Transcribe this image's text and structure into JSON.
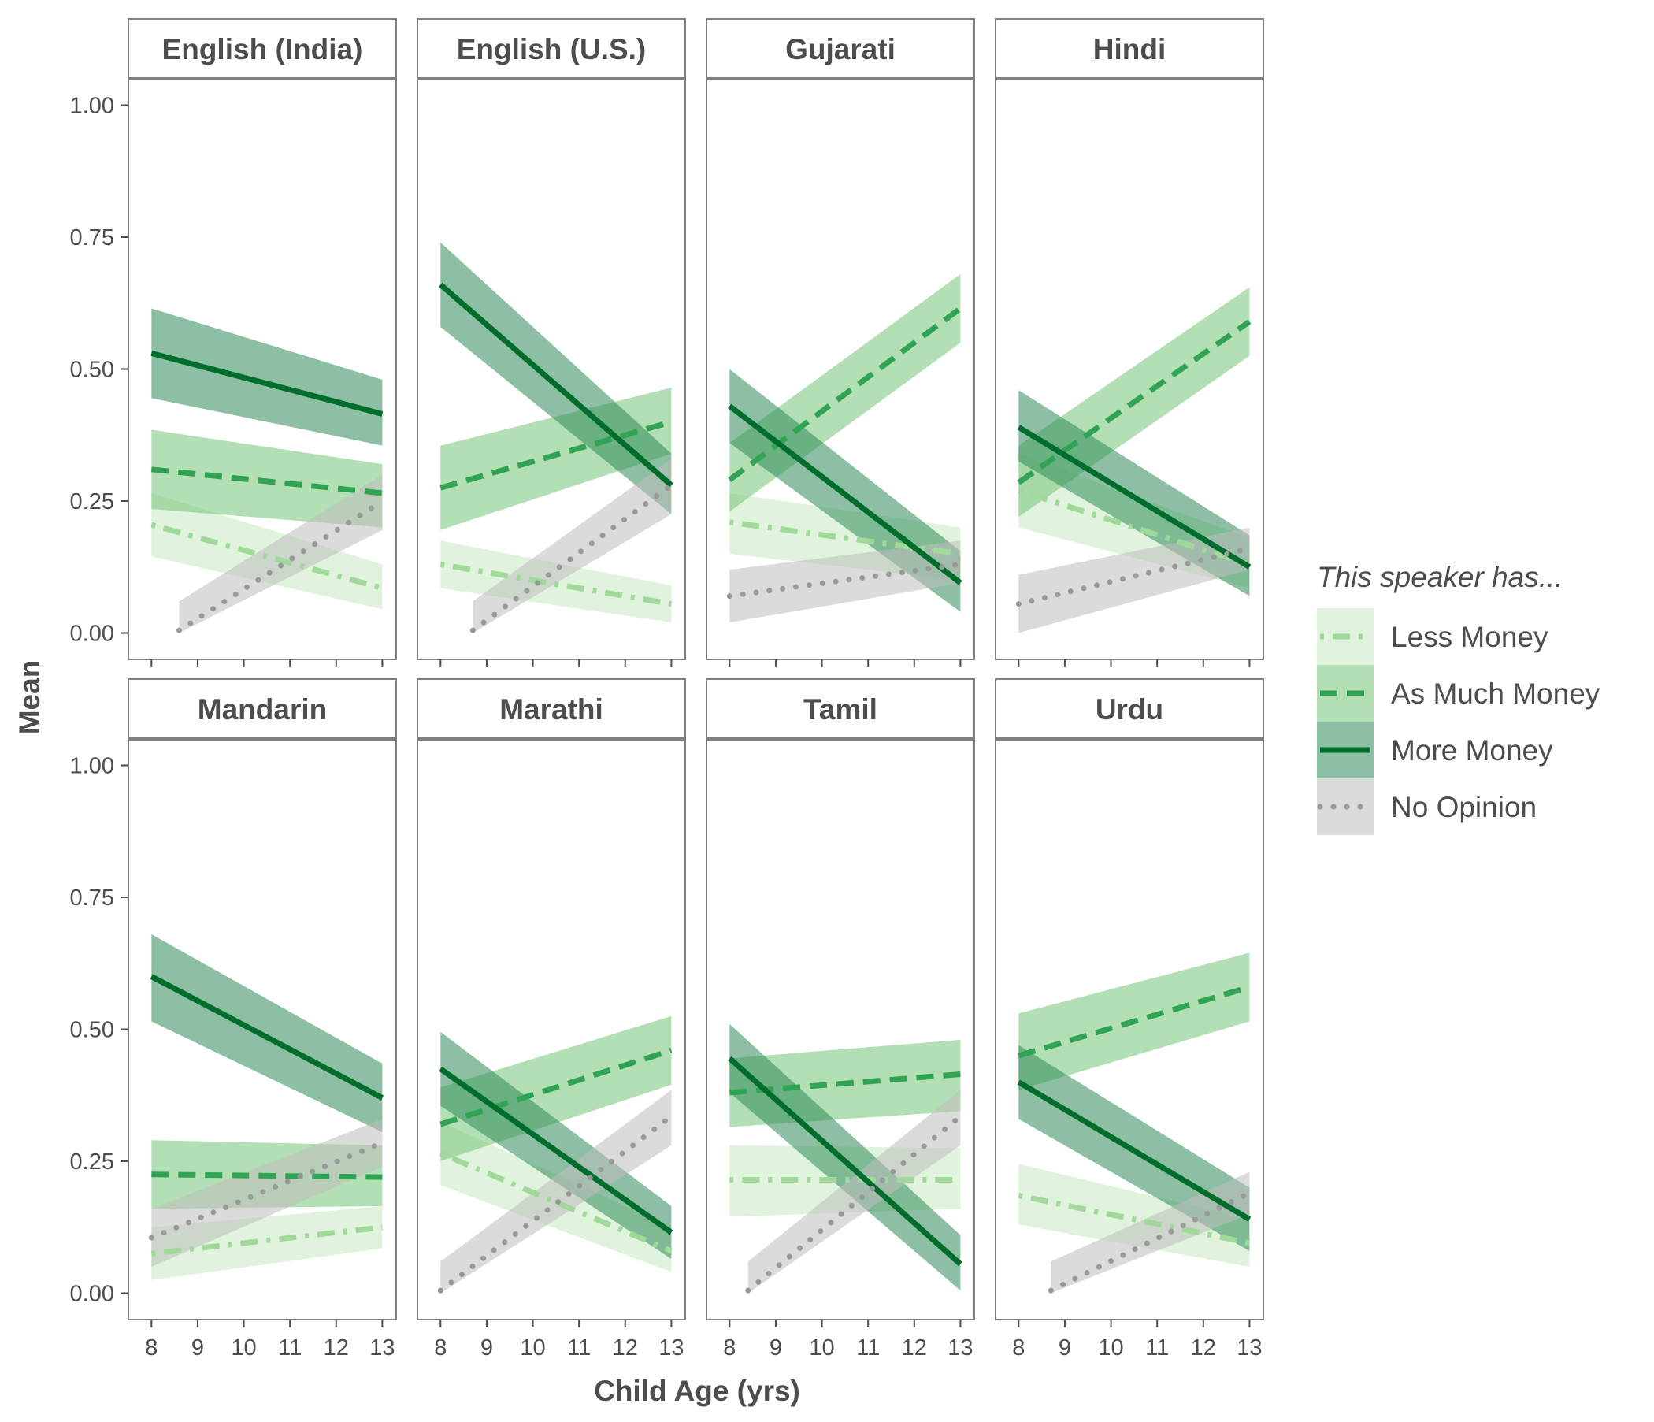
{
  "chart_data": {
    "type": "line",
    "xlabel": "Child Age (yrs)",
    "ylabel": "Mean",
    "xlim": [
      7.5,
      13.3
    ],
    "ylim": [
      -0.05,
      1.05
    ],
    "x_ticks": [
      8,
      9,
      10,
      11,
      12,
      13
    ],
    "y_ticks": [
      0.0,
      0.25,
      0.5,
      0.75,
      1.0
    ],
    "y_tick_labels": [
      "0.00",
      "0.25",
      "0.50",
      "0.75",
      "1.00"
    ],
    "grid": false,
    "legend": {
      "title": "This speaker has...",
      "position": "right",
      "entries": [
        "Less Money",
        "As Much Money",
        "More Money",
        "No Opinion"
      ]
    },
    "series_styles": [
      {
        "name": "Less Money",
        "color": "#a1d99b",
        "ribbon": "#c7e9c0",
        "dash": "dashdot"
      },
      {
        "name": "As Much Money",
        "color": "#31a354",
        "ribbon": "#74c476",
        "dash": "dashed"
      },
      {
        "name": "More Money",
        "color": "#006d2c",
        "ribbon": "#2e8b57",
        "dash": "solid"
      },
      {
        "name": "No Opinion",
        "color": "#999999",
        "ribbon": "#bdbdbd",
        "dash": "dotted"
      }
    ],
    "panels": [
      {
        "title": "English (India)",
        "series": [
          {
            "name": "Less Money",
            "x": [
              8,
              13
            ],
            "y": [
              0.205,
              0.085
            ],
            "lower": [
              0.145,
              0.045
            ],
            "upper": [
              0.265,
              0.13
            ]
          },
          {
            "name": "As Much Money",
            "x": [
              8,
              13
            ],
            "y": [
              0.31,
              0.265
            ],
            "lower": [
              0.235,
              0.2
            ],
            "upper": [
              0.385,
              0.32
            ]
          },
          {
            "name": "More Money",
            "x": [
              8,
              13
            ],
            "y": [
              0.53,
              0.415
            ],
            "lower": [
              0.445,
              0.355
            ],
            "upper": [
              0.615,
              0.48
            ]
          },
          {
            "name": "No Opinion",
            "x": [
              8.6,
              13
            ],
            "y": [
              0.005,
              0.25
            ],
            "lower": [
              0.0,
              0.195
            ],
            "upper": [
              0.06,
              0.3
            ]
          }
        ]
      },
      {
        "title": "English (U.S.)",
        "series": [
          {
            "name": "Less Money",
            "x": [
              8,
              13
            ],
            "y": [
              0.13,
              0.055
            ],
            "lower": [
              0.085,
              0.02
            ],
            "upper": [
              0.175,
              0.09
            ]
          },
          {
            "name": "As Much Money",
            "x": [
              8,
              13
            ],
            "y": [
              0.275,
              0.4
            ],
            "lower": [
              0.195,
              0.34
            ],
            "upper": [
              0.355,
              0.465
            ]
          },
          {
            "name": "More Money",
            "x": [
              8,
              13
            ],
            "y": [
              0.66,
              0.28
            ],
            "lower": [
              0.58,
              0.225
            ],
            "upper": [
              0.74,
              0.34
            ]
          },
          {
            "name": "No Opinion",
            "x": [
              8.7,
              13
            ],
            "y": [
              0.005,
              0.28
            ],
            "lower": [
              0.0,
              0.225
            ],
            "upper": [
              0.06,
              0.33
            ]
          }
        ]
      },
      {
        "title": "Gujarati",
        "series": [
          {
            "name": "Less Money",
            "x": [
              8,
              13
            ],
            "y": [
              0.21,
              0.15
            ],
            "lower": [
              0.15,
              0.1
            ],
            "upper": [
              0.265,
              0.2
            ]
          },
          {
            "name": "As Much Money",
            "x": [
              8,
              13
            ],
            "y": [
              0.29,
              0.615
            ],
            "lower": [
              0.23,
              0.55
            ],
            "upper": [
              0.36,
              0.68
            ]
          },
          {
            "name": "More Money",
            "x": [
              8,
              13
            ],
            "y": [
              0.43,
              0.095
            ],
            "lower": [
              0.36,
              0.04
            ],
            "upper": [
              0.5,
              0.155
            ]
          },
          {
            "name": "No Opinion",
            "x": [
              8,
              13
            ],
            "y": [
              0.07,
              0.13
            ],
            "lower": [
              0.02,
              0.095
            ],
            "upper": [
              0.12,
              0.175
            ]
          }
        ]
      },
      {
        "title": "Hindi",
        "series": [
          {
            "name": "Less Money",
            "x": [
              8,
              13
            ],
            "y": [
              0.27,
              0.13
            ],
            "lower": [
              0.2,
              0.085
            ],
            "upper": [
              0.34,
              0.18
            ]
          },
          {
            "name": "As Much Money",
            "x": [
              8,
              13
            ],
            "y": [
              0.285,
              0.59
            ],
            "lower": [
              0.22,
              0.525
            ],
            "upper": [
              0.355,
              0.655
            ]
          },
          {
            "name": "More Money",
            "x": [
              8,
              13
            ],
            "y": [
              0.39,
              0.125
            ],
            "lower": [
              0.325,
              0.07
            ],
            "upper": [
              0.46,
              0.185
            ]
          },
          {
            "name": "No Opinion",
            "x": [
              8,
              13
            ],
            "y": [
              0.055,
              0.16
            ],
            "lower": [
              0.0,
              0.12
            ],
            "upper": [
              0.11,
              0.2
            ]
          }
        ]
      },
      {
        "title": "Mandarin",
        "series": [
          {
            "name": "Less Money",
            "x": [
              8,
              13
            ],
            "y": [
              0.075,
              0.125
            ],
            "lower": [
              0.025,
              0.085
            ],
            "upper": [
              0.125,
              0.165
            ]
          },
          {
            "name": "As Much Money",
            "x": [
              8,
              13
            ],
            "y": [
              0.225,
              0.22
            ],
            "lower": [
              0.16,
              0.165
            ],
            "upper": [
              0.29,
              0.28
            ]
          },
          {
            "name": "More Money",
            "x": [
              8,
              13
            ],
            "y": [
              0.6,
              0.37
            ],
            "lower": [
              0.515,
              0.305
            ],
            "upper": [
              0.68,
              0.435
            ]
          },
          {
            "name": "No Opinion",
            "x": [
              8,
              13
            ],
            "y": [
              0.105,
              0.285
            ],
            "lower": [
              0.05,
              0.24
            ],
            "upper": [
              0.16,
              0.33
            ]
          }
        ]
      },
      {
        "title": "Marathi",
        "series": [
          {
            "name": "Less Money",
            "x": [
              8,
              13
            ],
            "y": [
              0.265,
              0.08
            ],
            "lower": [
              0.205,
              0.04
            ],
            "upper": [
              0.325,
              0.125
            ]
          },
          {
            "name": "As Much Money",
            "x": [
              8,
              13
            ],
            "y": [
              0.32,
              0.46
            ],
            "lower": [
              0.25,
              0.395
            ],
            "upper": [
              0.39,
              0.525
            ]
          },
          {
            "name": "More Money",
            "x": [
              8,
              13
            ],
            "y": [
              0.425,
              0.115
            ],
            "lower": [
              0.355,
              0.065
            ],
            "upper": [
              0.495,
              0.165
            ]
          },
          {
            "name": "No Opinion",
            "x": [
              8,
              13
            ],
            "y": [
              0.005,
              0.335
            ],
            "lower": [
              0.0,
              0.28
            ],
            "upper": [
              0.06,
              0.385
            ]
          }
        ]
      },
      {
        "title": "Tamil",
        "series": [
          {
            "name": "Less Money",
            "x": [
              8,
              13
            ],
            "y": [
              0.215,
              0.215
            ],
            "lower": [
              0.145,
              0.16
            ],
            "upper": [
              0.28,
              0.275
            ]
          },
          {
            "name": "As Much Money",
            "x": [
              8,
              13
            ],
            "y": [
              0.38,
              0.415
            ],
            "lower": [
              0.315,
              0.345
            ],
            "upper": [
              0.445,
              0.48
            ]
          },
          {
            "name": "More Money",
            "x": [
              8,
              13
            ],
            "y": [
              0.445,
              0.055
            ],
            "lower": [
              0.38,
              0.005
            ],
            "upper": [
              0.51,
              0.11
            ]
          },
          {
            "name": "No Opinion",
            "x": [
              8.4,
              13
            ],
            "y": [
              0.005,
              0.335
            ],
            "lower": [
              0.0,
              0.28
            ],
            "upper": [
              0.06,
              0.385
            ]
          }
        ]
      },
      {
        "title": "Urdu",
        "series": [
          {
            "name": "Less Money",
            "x": [
              8,
              13
            ],
            "y": [
              0.185,
              0.095
            ],
            "lower": [
              0.13,
              0.05
            ],
            "upper": [
              0.245,
              0.14
            ]
          },
          {
            "name": "As Much Money",
            "x": [
              8,
              13
            ],
            "y": [
              0.45,
              0.58
            ],
            "lower": [
              0.385,
              0.515
            ],
            "upper": [
              0.53,
              0.645
            ]
          },
          {
            "name": "More Money",
            "x": [
              8,
              13
            ],
            "y": [
              0.4,
              0.14
            ],
            "lower": [
              0.33,
              0.08
            ],
            "upper": [
              0.47,
              0.2
            ]
          },
          {
            "name": "No Opinion",
            "x": [
              8.7,
              13
            ],
            "y": [
              0.005,
              0.19
            ],
            "lower": [
              0.0,
              0.15
            ],
            "upper": [
              0.06,
              0.23
            ]
          }
        ]
      }
    ]
  }
}
